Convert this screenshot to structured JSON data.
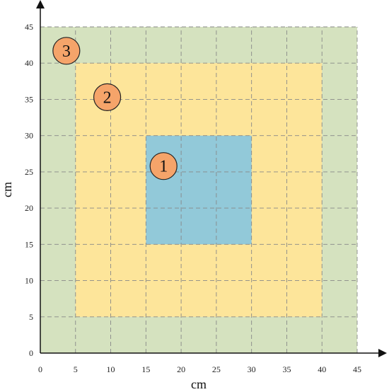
{
  "figure": {
    "x_axis": {
      "label": "cm",
      "min": 0,
      "max": 45,
      "ticks": [
        0,
        5,
        10,
        15,
        20,
        25,
        30,
        35,
        40,
        45
      ]
    },
    "y_axis": {
      "label": "cm",
      "min": 0,
      "max": 45,
      "ticks": [
        0,
        5,
        10,
        15,
        20,
        25,
        30,
        35,
        40,
        45
      ]
    },
    "grid": true,
    "regions": [
      {
        "name": "outer",
        "x0": 0,
        "y0": 0,
        "x1": 45,
        "y1": 45,
        "fill": "#d5e2bf"
      },
      {
        "name": "middle",
        "x0": 5,
        "y0": 5,
        "x1": 40,
        "y1": 40,
        "fill": "#fde59a"
      },
      {
        "name": "inner",
        "x0": 15,
        "y0": 15,
        "x1": 30,
        "y1": 30,
        "fill": "#92c9d9"
      }
    ],
    "markers": [
      {
        "label": "1",
        "x": 17.5,
        "y": 25.8
      },
      {
        "label": "2",
        "x": 9.5,
        "y": 35.3
      },
      {
        "label": "3",
        "x": 3.7,
        "y": 41.7
      }
    ],
    "marker_fill": "#f5a46a",
    "grid_color": "#888888",
    "axis_color": "#111111"
  }
}
